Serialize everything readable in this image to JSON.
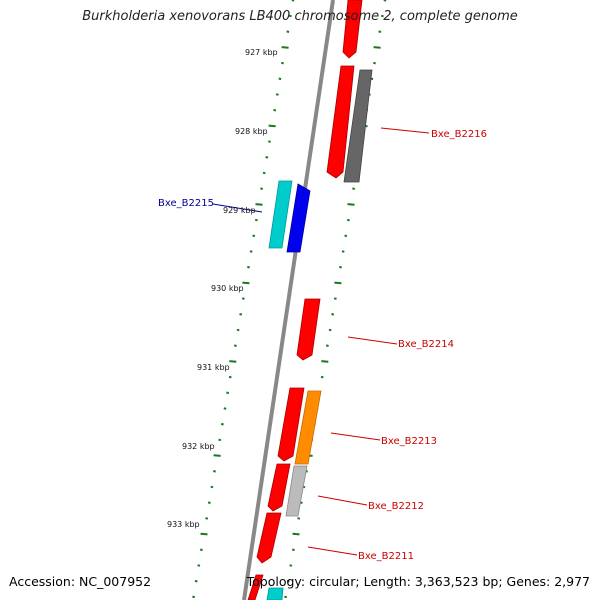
{
  "title": "Burkholderia xenovorans LB400 chromosome 2, complete genome",
  "footer": {
    "accession": "Accession: NC_007952",
    "topology": "Topology: circular; Length: 3,363,523 bp; Genes: 2,977"
  },
  "ruler": {
    "labels": [
      "927 kbp",
      "928 kbp",
      "929 kbp",
      "930 kbp",
      "931 kbp",
      "932 kbp",
      "933 kbp"
    ],
    "tick_color": "#1a7a1a"
  },
  "colors": {
    "backbone": "#808080",
    "red": "#ff0000",
    "dark_gray": "#666666",
    "cyan": "#00cccc",
    "blue": "#0000ee",
    "orange": "#ff8c00",
    "light_gray": "#bbbbbb",
    "label_red": "#cc0000",
    "label_blue": "#000099"
  },
  "gene_labels": [
    {
      "name": "Bxe_B2216",
      "color": "red"
    },
    {
      "name": "Bxe_B2215",
      "color": "blue"
    },
    {
      "name": "Bxe_B2214",
      "color": "red"
    },
    {
      "name": "Bxe_B2213",
      "color": "red"
    },
    {
      "name": "Bxe_B2212",
      "color": "red"
    },
    {
      "name": "Bxe_B2211",
      "color": "red"
    }
  ]
}
